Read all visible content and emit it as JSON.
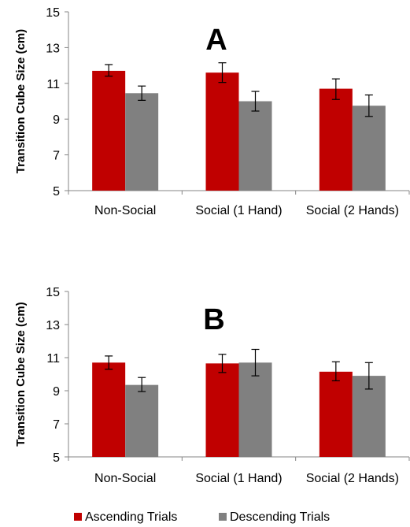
{
  "chart_data": [
    {
      "type": "bar",
      "panel_label": "A",
      "ylabel": "Transition Cube Size (cm)",
      "xlabel": "",
      "ylim": [
        5,
        15
      ],
      "yticks": [
        5,
        7,
        9,
        11,
        13,
        15
      ],
      "categories": [
        "Non-Social",
        "Social (1 Hand)",
        "Social (2 Hands)"
      ],
      "series": [
        {
          "name": "Ascending Trials",
          "color": "#c00000",
          "values": [
            11.7,
            11.6,
            10.7
          ],
          "error_low": [
            11.4,
            11.05,
            10.1
          ],
          "error_high": [
            12.05,
            12.15,
            11.25
          ]
        },
        {
          "name": "Descending Trials",
          "color": "#808080",
          "values": [
            10.45,
            10.0,
            9.75
          ],
          "error_low": [
            10.05,
            9.45,
            9.15
          ],
          "error_high": [
            10.85,
            10.55,
            10.35
          ]
        }
      ]
    },
    {
      "type": "bar",
      "panel_label": "B",
      "ylabel": "Transition Cube Size (cm)",
      "xlabel": "",
      "ylim": [
        5,
        15
      ],
      "yticks": [
        5,
        7,
        9,
        11,
        13,
        15
      ],
      "categories": [
        "Non-Social",
        "Social (1 Hand)",
        "Social (2 Hands)"
      ],
      "series": [
        {
          "name": "Ascending Trials",
          "color": "#c00000",
          "values": [
            10.7,
            10.65,
            10.15
          ],
          "error_low": [
            10.3,
            10.1,
            9.6
          ],
          "error_high": [
            11.1,
            11.2,
            10.75
          ]
        },
        {
          "name": "Descending Trials",
          "color": "#808080",
          "values": [
            9.35,
            10.7,
            9.9
          ],
          "error_low": [
            8.95,
            9.9,
            9.1
          ],
          "error_high": [
            9.8,
            11.5,
            10.7
          ]
        }
      ]
    }
  ],
  "legend": {
    "placement": "bottom-center",
    "items": [
      {
        "label": "Ascending Trials",
        "color": "#c00000"
      },
      {
        "label": "Descending Trials",
        "color": "#808080"
      }
    ]
  }
}
